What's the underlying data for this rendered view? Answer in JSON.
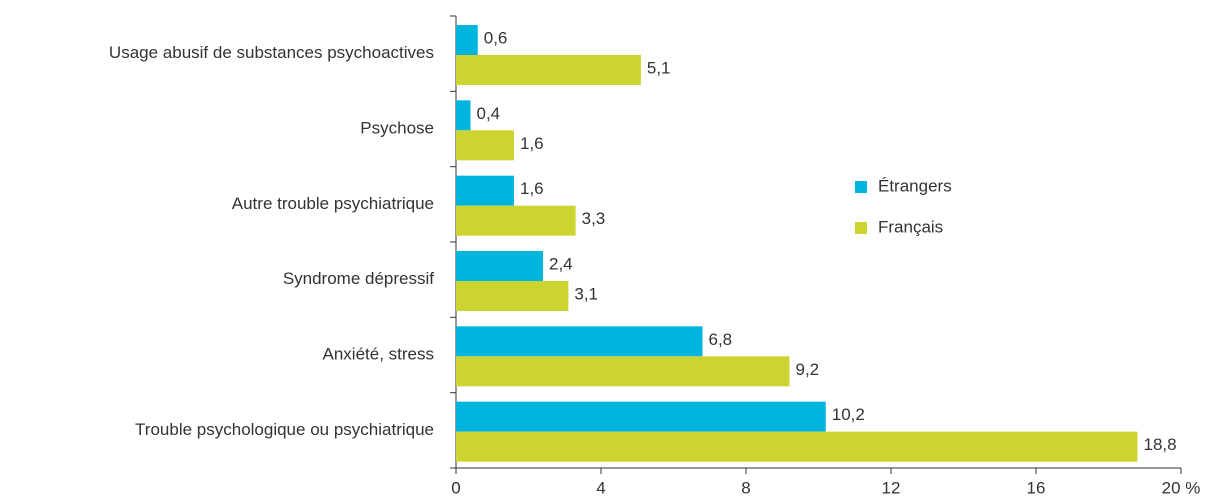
{
  "chart_data": {
    "type": "barh",
    "categories": [
      "Usage abusif de substances psychoactives",
      "Psychose",
      "Autre trouble psychiatrique",
      "Syndrome dépressif",
      "Anxiété, stress",
      "Trouble psychologique ou psychiatrique"
    ],
    "series": [
      {
        "name": "Étrangers",
        "color": "#00b4e0",
        "values": [
          0.6,
          0.4,
          1.6,
          2.4,
          6.8,
          10.2
        ],
        "value_labels": [
          "0,6",
          "0,4",
          "1,6",
          "2,4",
          "6,8",
          "10,2"
        ]
      },
      {
        "name": "Français",
        "color": "#ccd42f",
        "values": [
          5.1,
          1.6,
          3.3,
          3.1,
          9.2,
          18.8
        ],
        "value_labels": [
          "5,1",
          "1,6",
          "3,3",
          "3,1",
          "9,2",
          "18,8"
        ]
      }
    ],
    "xlim": [
      0,
      20
    ],
    "xticks": [
      0,
      4,
      8,
      12,
      16,
      {
        "value": 20,
        "label": "20 %"
      }
    ],
    "legend": "right"
  }
}
